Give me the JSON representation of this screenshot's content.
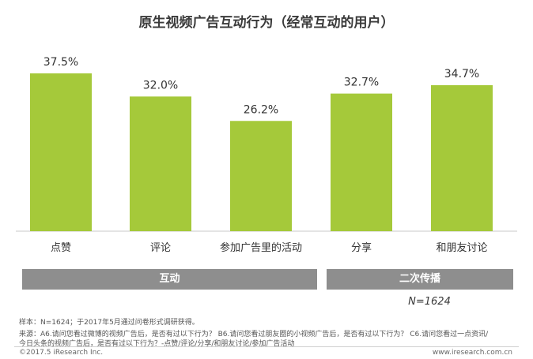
{
  "title": "原生视频广告互动行为（经常互动的用户）",
  "chart_data": {
    "type": "bar",
    "categories": [
      "点赞",
      "评论",
      "参加广告里的活动",
      "分享",
      "和朋友讨论"
    ],
    "values": [
      37.5,
      32.0,
      26.2,
      32.7,
      34.7
    ],
    "value_labels": [
      "37.5%",
      "32.0%",
      "26.2%",
      "32.7%",
      "34.7%"
    ],
    "ylim": [
      0,
      45
    ],
    "bar_color": "#a5c93a",
    "groups": [
      {
        "label": "互动",
        "categories": [
          "点赞",
          "评论",
          "参加广告里的活动"
        ]
      },
      {
        "label": "二次传播",
        "categories": [
          "分享",
          "和朋友讨论"
        ]
      }
    ],
    "group_color": "#8e8e8e",
    "grid": false
  },
  "sample_size": "N=1624",
  "footer": {
    "sample": "样本：N=1624；于2017年5月通过问卷形式调研获得。",
    "source_line1": "来源：A6.请问您看过微博的视频广告后，是否有过以下行为？ B6.请问您看过朋友圈的小视频广告后，是否有过以下行为？ C6.请问您看过一点资讯/",
    "source_line2": "今日头条的视频广告后，是否有过以下行为？-点赞/评论/分享/和朋友讨论/参加广告活动",
    "copyright": "©2017.5 iResearch Inc.",
    "website": "www.iresearch.com.cn"
  }
}
